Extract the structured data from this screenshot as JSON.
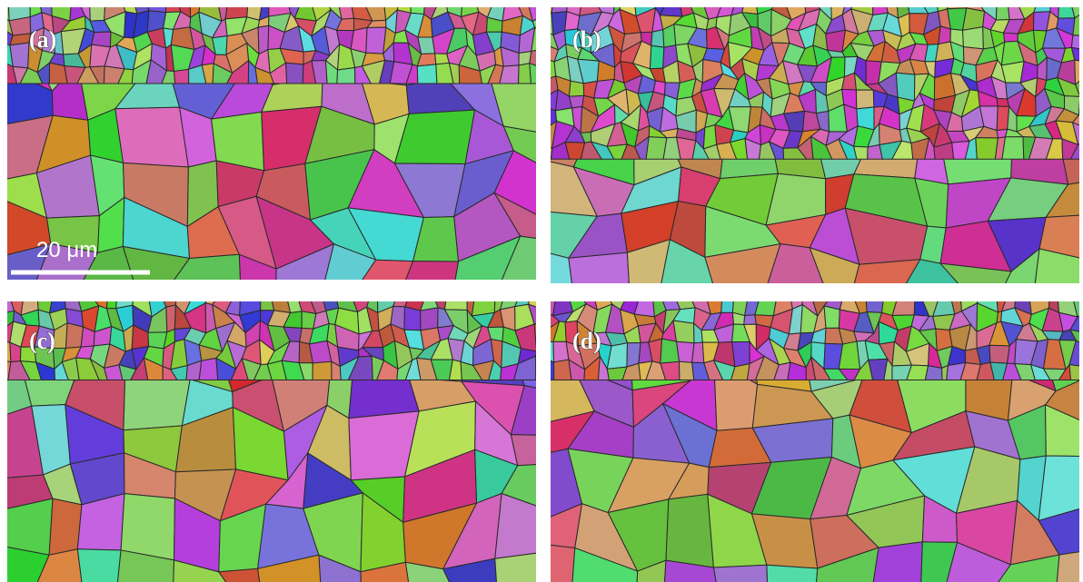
{
  "panels": [
    {
      "label": "(a)"
    },
    {
      "label": "(b)"
    },
    {
      "label": "(c)"
    },
    {
      "label": "(d)"
    }
  ],
  "scale_bar": {
    "label": "20 μm"
  }
}
